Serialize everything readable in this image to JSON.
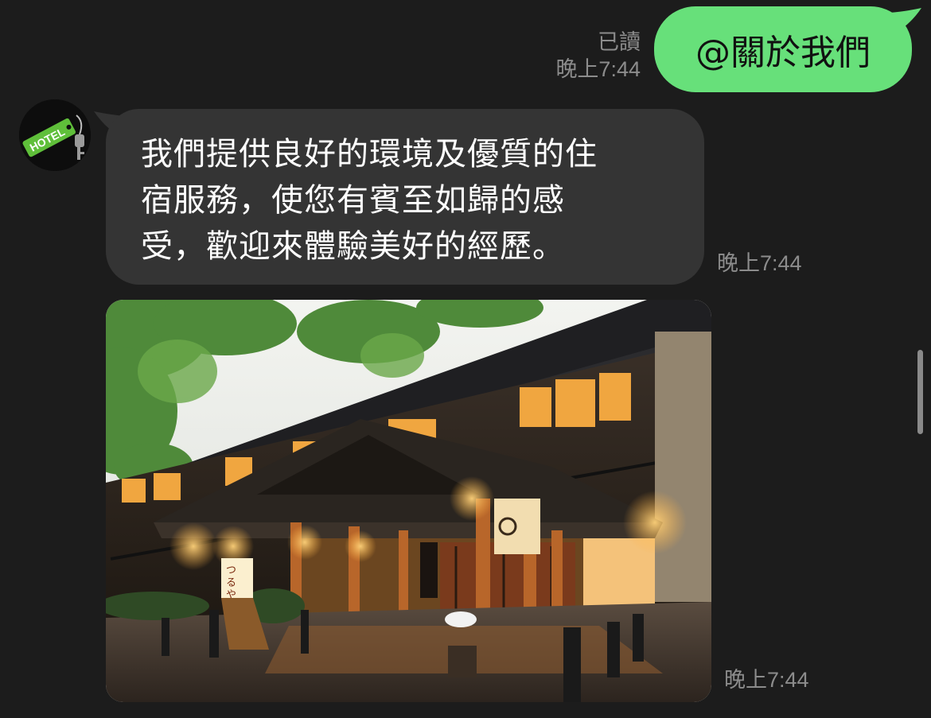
{
  "outgoing": {
    "text": "@關於我們",
    "read_label": "已讀",
    "time": "晚上7:44",
    "bubble_color": "#67e07a"
  },
  "incoming_text": {
    "lines": [
      "我們提供良好的環境及優質的住",
      "宿服務，使您有賓至如歸的感",
      "受，歡迎來體驗美好的經歷。"
    ],
    "time": "晚上7:44",
    "bubble_color": "#343434"
  },
  "avatar": {
    "label": "HOTEL",
    "icon": "hotel-key-tag-icon"
  },
  "incoming_image": {
    "sign_chars": [
      "つ",
      "る",
      "や"
    ],
    "time": "晚上7:44"
  },
  "theme": {
    "background": "#1c1c1c",
    "meta_color": "#8c8c8c"
  }
}
